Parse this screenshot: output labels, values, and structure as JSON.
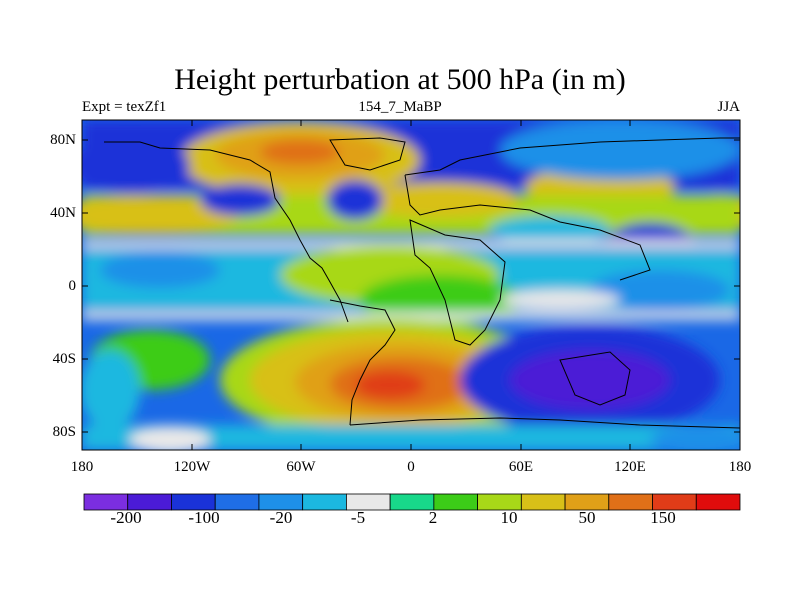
{
  "title": "Height perturbation at 500 hPa (in m)",
  "subtitle_left": "Expt = texZf1",
  "subtitle_center": "154_7_MaBP",
  "subtitle_right": "JJA",
  "axes": {
    "y_ticks": [
      "80N",
      "40N",
      "0",
      "40S",
      "80S"
    ],
    "x_ticks": [
      "180",
      "120W",
      "60W",
      "0",
      "60E",
      "120E",
      "180"
    ]
  },
  "colorbar": {
    "labels": [
      "-200",
      "-100",
      "-20",
      "-5",
      "2",
      "10",
      "50",
      "150"
    ],
    "colors": [
      "#7b2ee0",
      "#4b1bd6",
      "#1a32d8",
      "#1f6ee6",
      "#1e90e8",
      "#1cb8e0",
      "#e8e8e8",
      "#18d88a",
      "#3ccc18",
      "#a8d818",
      "#d8c018",
      "#e0a018",
      "#e07018",
      "#e03c18",
      "#e00c0c"
    ]
  },
  "map": {
    "longitude_range": [
      -180,
      180
    ],
    "latitude_range": [
      -90,
      90
    ],
    "background_color": "#1a32d8"
  }
}
